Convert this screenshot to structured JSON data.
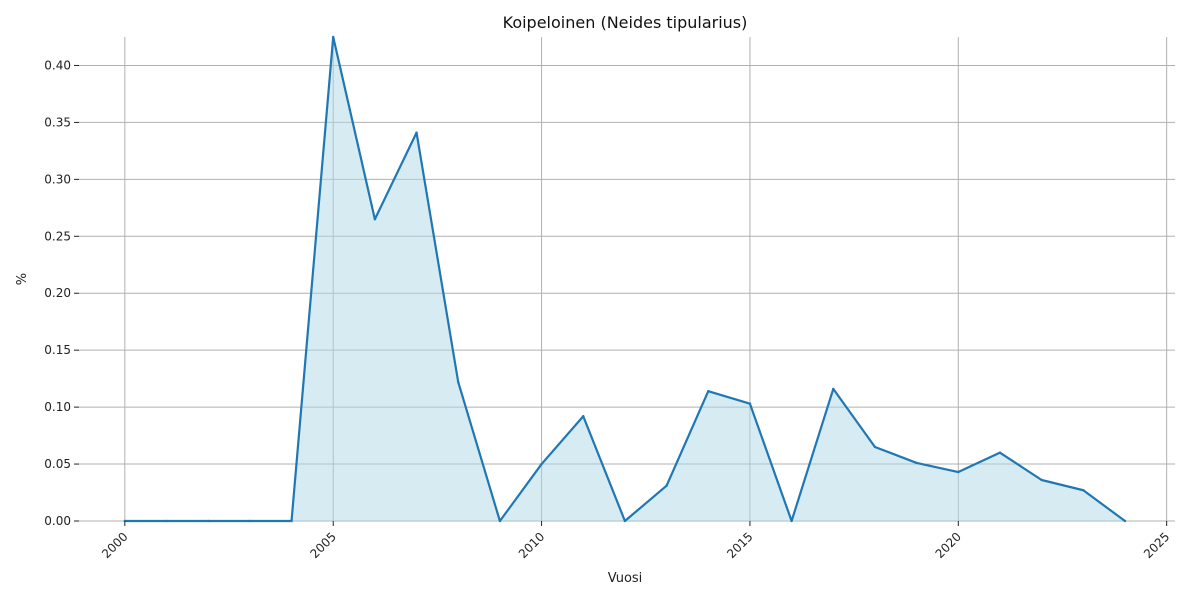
{
  "chart_data": {
    "type": "area",
    "title": "Koipeloinen (Neides tipularius)",
    "xlabel": "Vuosi",
    "ylabel": "%",
    "x": [
      2000,
      2001,
      2002,
      2003,
      2004,
      2005,
      2006,
      2007,
      2008,
      2009,
      2010,
      2011,
      2012,
      2013,
      2014,
      2015,
      2016,
      2017,
      2018,
      2019,
      2020,
      2021,
      2022,
      2023,
      2024
    ],
    "values": [
      0,
      0,
      0,
      0,
      0,
      0.425,
      0.265,
      0.341,
      0.122,
      0,
      0.05,
      0.092,
      0,
      0.031,
      0.114,
      0.103,
      0,
      0.116,
      0.065,
      0.051,
      0.043,
      0.06,
      0.036,
      0.027,
      0
    ],
    "xlim": [
      1998.9,
      2025.2
    ],
    "ylim": [
      0,
      0.425
    ],
    "xticks": [
      "2000",
      "2005",
      "2010",
      "2015",
      "2020",
      "2025"
    ],
    "yticks": [
      "0.00",
      "0.05",
      "0.10",
      "0.15",
      "0.20",
      "0.25",
      "0.30",
      "0.35",
      "0.40"
    ],
    "grid": true,
    "colors": {
      "line": "#1f77b4",
      "fill": "#add8e6",
      "grid": "#b0b0b0"
    }
  }
}
